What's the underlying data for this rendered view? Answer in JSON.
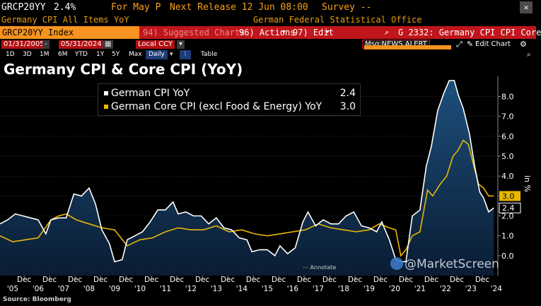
{
  "header": {
    "ticker": "GRCP20YY",
    "value": "2.4%",
    "period_label": "For May P",
    "release_label": "Next Release 12 Jun 08:00",
    "survey_label": "Survey --",
    "description": "Germany CPI All Items YoY",
    "source_org": "German Federal Statistical Office",
    "close_glyph": "✕"
  },
  "menu": {
    "index_label": "GRCP20YY Index",
    "suggested": "94) Suggested Charts",
    "actions": "96) Actions",
    "edit": "97) Edit",
    "chart_title": "G 2332: Germany CPI CPI Core"
  },
  "controls": {
    "start_date": "01/31/2005",
    "end_date": "05/31/2024",
    "currency": "Local CCY",
    "frequency": "Daily",
    "table": "Table",
    "msg": "Msg:NEWS ALERT",
    "edit_chart": "Edit Chart",
    "ranges": [
      "1D",
      "3D",
      "1M",
      "6M",
      "YTD",
      "1Y",
      "5Y",
      "Max"
    ]
  },
  "title": "Germany CPI & Core CPI (YoY)",
  "annotate_label": "Annotate",
  "source": "Source: Bloomberg",
  "watermark": "@MarketScreen",
  "colors": {
    "cpi": "#ffffff",
    "core": "#e8b800",
    "area_top": "#1d4f7c",
    "area_bottom": "#0a1c33"
  },
  "chart_data": {
    "type": "line",
    "title": "Germany CPI & Core CPI (YoY)",
    "ylabel": "in %",
    "ylim": [
      -1,
      8.8
    ],
    "yticks": [
      0,
      1,
      2,
      3,
      4,
      5,
      6,
      7,
      8
    ],
    "ytick_labels": [
      "0.0",
      "1.0",
      "2.0",
      "3.0",
      "4.0",
      "5.0",
      "6.0",
      "7.0",
      "8.0"
    ],
    "xlim": [
      2005.0,
      2024.45
    ],
    "month_labels": [
      "Dec",
      "Dec",
      "Dec",
      "Dec",
      "Dec",
      "Dec",
      "Dec",
      "Dec",
      "Dec",
      "Dec",
      "Dec",
      "Dec",
      "Dec",
      "Dec",
      "Dec",
      "Dec",
      "Dec",
      "Dec",
      "Dec"
    ],
    "year_labels": [
      "'05",
      "'06",
      "'07",
      "'08",
      "'09",
      "'10",
      "'11",
      "'12",
      "'13",
      "'14",
      "'15",
      "'16",
      "'17",
      "'18",
      "'19",
      "'20",
      "'21",
      "'22",
      "'23",
      "'24"
    ],
    "legend": [
      {
        "name": "German CPI YoY",
        "last": "2.4"
      },
      {
        "name": "German Core CPI (excl Food & Energy) YoY",
        "last": "3.0"
      }
    ],
    "series": [
      {
        "name": "German CPI YoY",
        "last": 2.4,
        "x": [
          2005.0,
          2005.3,
          2005.6,
          2005.9,
          2006.2,
          2006.5,
          2006.8,
          2007.0,
          2007.3,
          2007.6,
          2007.9,
          2008.2,
          2008.5,
          2008.75,
          2009.0,
          2009.3,
          2009.5,
          2009.8,
          2010.0,
          2010.3,
          2010.6,
          2010.9,
          2011.2,
          2011.5,
          2011.8,
          2012.0,
          2012.3,
          2012.6,
          2012.9,
          2013.2,
          2013.5,
          2013.8,
          2014.1,
          2014.4,
          2014.7,
          2014.9,
          2015.2,
          2015.5,
          2015.8,
          2016.0,
          2016.3,
          2016.6,
          2016.9,
          2017.1,
          2017.4,
          2017.7,
          2018.0,
          2018.3,
          2018.6,
          2018.9,
          2019.2,
          2019.5,
          2019.8,
          2020.0,
          2020.3,
          2020.55,
          2020.75,
          2020.95,
          2021.2,
          2021.5,
          2021.75,
          2021.95,
          2022.2,
          2022.45,
          2022.65,
          2022.85,
          2023.0,
          2023.2,
          2023.45,
          2023.65,
          2023.85,
          2024.0,
          2024.2,
          2024.4
        ],
        "values": [
          1.6,
          1.8,
          2.1,
          2.0,
          1.9,
          1.8,
          1.1,
          1.8,
          1.9,
          1.9,
          3.1,
          3.0,
          3.4,
          2.6,
          1.3,
          0.6,
          -0.3,
          -0.2,
          0.8,
          1.0,
          1.2,
          1.7,
          2.3,
          2.3,
          2.7,
          2.1,
          2.2,
          2.0,
          2.0,
          1.6,
          1.9,
          1.4,
          1.3,
          0.9,
          0.8,
          0.2,
          0.3,
          0.3,
          0.0,
          0.5,
          0.1,
          0.4,
          1.7,
          2.2,
          1.5,
          1.8,
          1.6,
          1.6,
          2.0,
          2.2,
          1.5,
          1.4,
          1.2,
          1.7,
          0.8,
          -0.2,
          -0.3,
          -0.3,
          2.0,
          2.3,
          4.5,
          5.5,
          7.3,
          8.2,
          8.8,
          8.8,
          8.1,
          7.4,
          6.1,
          4.5,
          3.2,
          2.9,
          2.2,
          2.4
        ]
      },
      {
        "name": "German Core CPI (excl Food & Energy) YoY",
        "last": 3.0,
        "x": [
          2005.0,
          2005.5,
          2006.0,
          2006.5,
          2007.0,
          2007.3,
          2007.6,
          2008.0,
          2008.5,
          2009.0,
          2009.5,
          2010.0,
          2010.5,
          2011.0,
          2011.5,
          2012.0,
          2012.5,
          2013.0,
          2013.5,
          2014.0,
          2014.5,
          2015.0,
          2015.5,
          2016.0,
          2016.5,
          2017.0,
          2017.5,
          2018.0,
          2018.5,
          2019.0,
          2019.5,
          2019.9,
          2020.3,
          2020.55,
          2020.75,
          2020.95,
          2021.2,
          2021.5,
          2021.8,
          2022.0,
          2022.3,
          2022.55,
          2022.8,
          2023.0,
          2023.2,
          2023.4,
          2023.6,
          2023.8,
          2024.0,
          2024.2,
          2024.4
        ],
        "values": [
          1.0,
          0.7,
          0.8,
          0.9,
          1.8,
          2.0,
          2.1,
          1.8,
          1.6,
          1.4,
          1.3,
          0.5,
          0.8,
          0.9,
          1.2,
          1.4,
          1.3,
          1.3,
          1.5,
          1.2,
          1.3,
          1.1,
          1.0,
          1.1,
          1.2,
          1.3,
          1.6,
          1.4,
          1.3,
          1.2,
          1.3,
          1.6,
          1.4,
          1.3,
          0.0,
          0.3,
          1.0,
          1.2,
          3.3,
          3.0,
          3.6,
          4.0,
          5.0,
          5.3,
          5.8,
          5.6,
          4.6,
          3.6,
          3.4,
          3.0,
          3.0
        ]
      }
    ]
  }
}
